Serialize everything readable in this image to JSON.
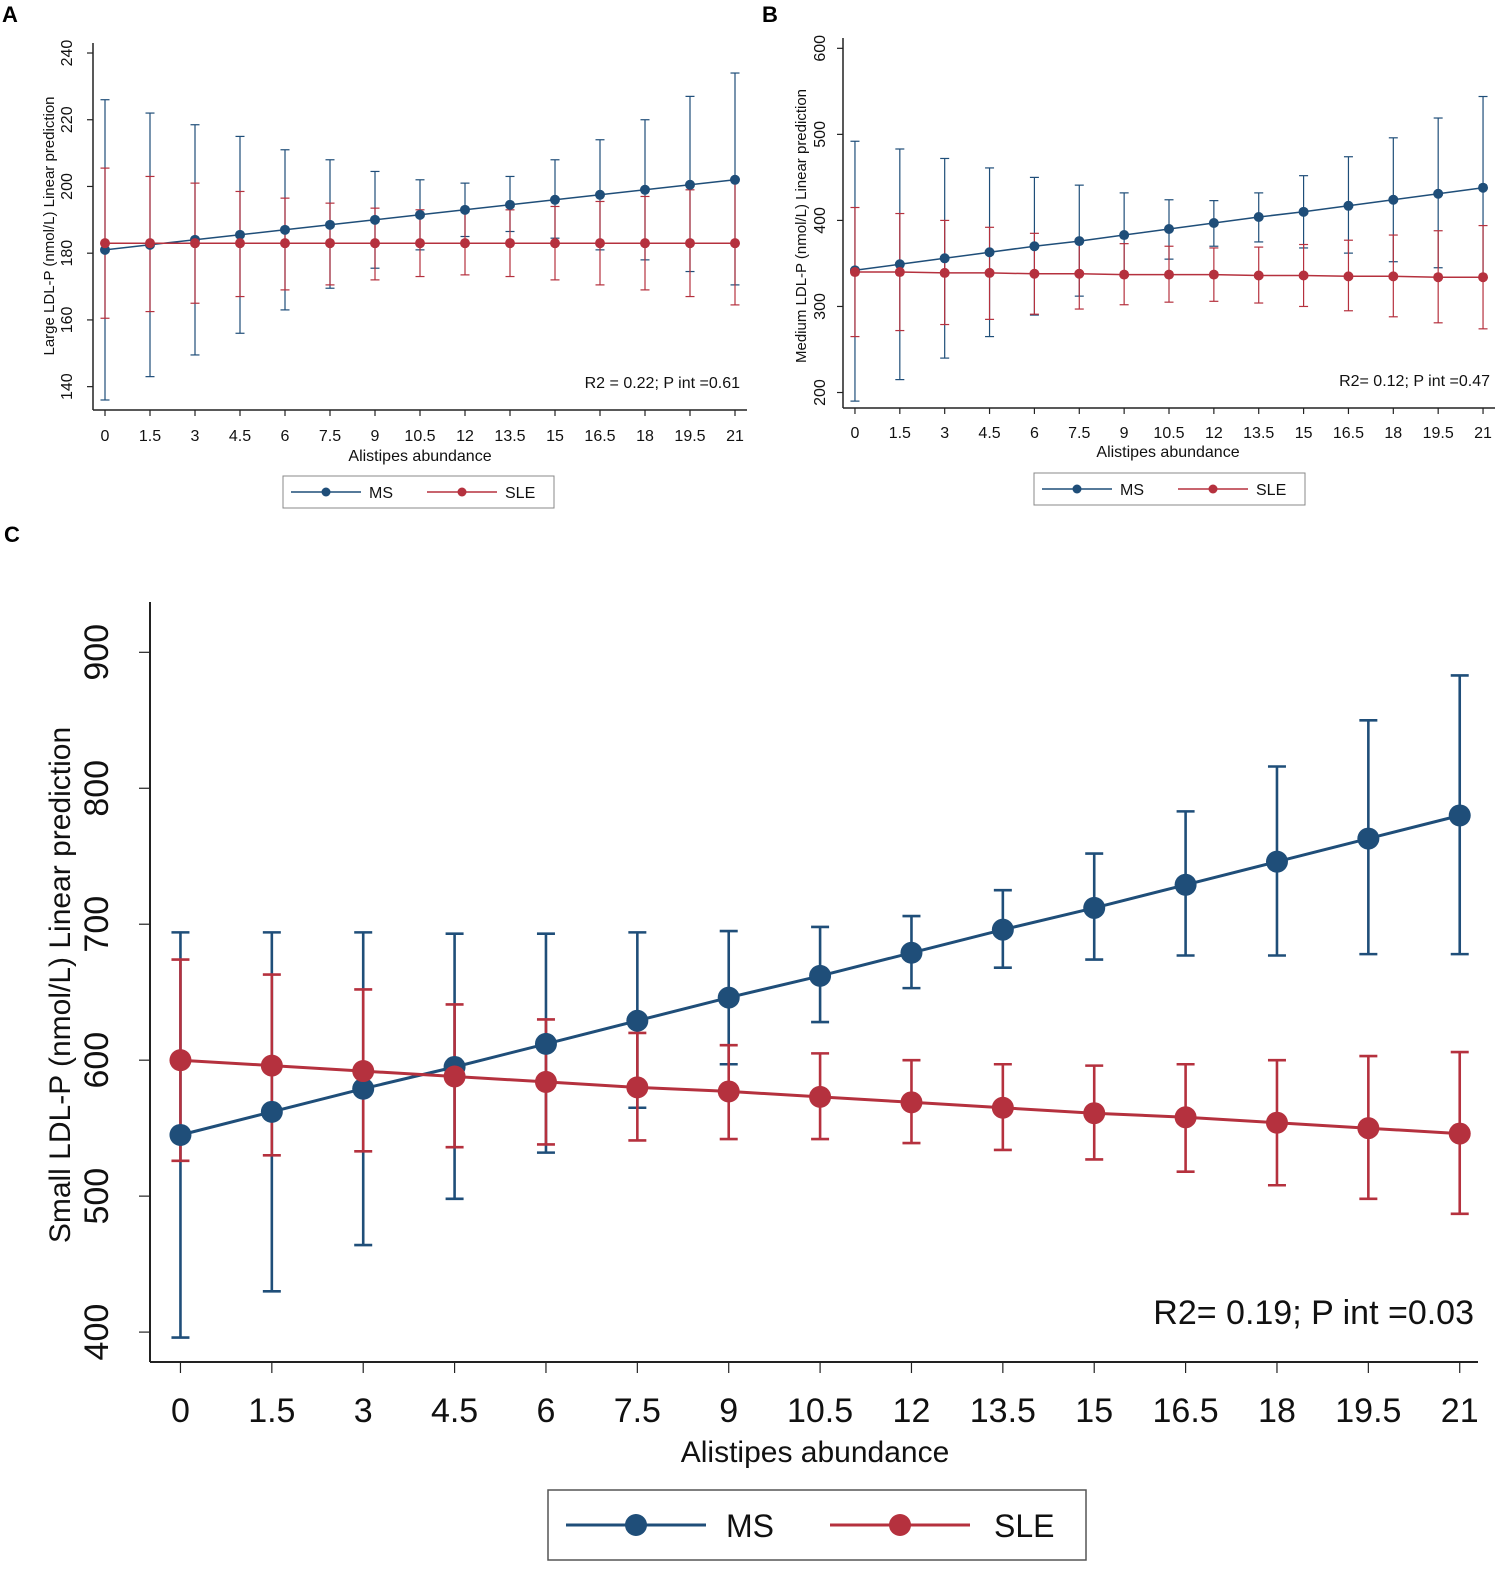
{
  "colors": {
    "ms": "#1f4e79",
    "sle": "#b5313e",
    "axis": "#222222",
    "text": "#111111"
  },
  "chart_data": [
    {
      "id": "A",
      "panel_label": "A",
      "type": "line",
      "errorbars": true,
      "title": "",
      "xlabel": "Alistipes abundance",
      "ylabel": "Large LDL-P (nmol/L) Linear prediction",
      "xlim": [
        -0.4,
        21.4
      ],
      "ylim": [
        133,
        243
      ],
      "x": [
        0,
        1.5,
        3,
        4.5,
        6,
        7.5,
        9,
        10.5,
        12,
        13.5,
        15,
        16.5,
        18,
        19.5,
        21
      ],
      "x_tick_labels": [
        "0",
        "1.5",
        "3",
        "4.5",
        "6",
        "7.5",
        "9",
        "10.5",
        "12",
        "13.5",
        "15",
        "16.5",
        "18",
        "19.5",
        "21"
      ],
      "y_ticks": [
        140,
        160,
        180,
        200,
        220,
        240
      ],
      "y_tick_labels": [
        "140",
        "160",
        "180",
        "200",
        "220",
        "240"
      ],
      "annotation": "R2 = 0.22; P int =0.61",
      "legend": {
        "position": "bottom-center",
        "entries": [
          "MS",
          "SLE"
        ]
      },
      "series": [
        {
          "name": "MS",
          "color_key": "ms",
          "values": [
            181,
            182.5,
            184,
            185.5,
            187,
            188.5,
            190,
            191.5,
            193,
            194.5,
            196,
            197.5,
            199,
            200.5,
            202
          ],
          "lower": [
            136,
            143,
            149.5,
            156,
            163,
            169.5,
            175.5,
            181,
            185,
            186.5,
            184.5,
            181,
            178,
            174.5,
            170.5
          ],
          "upper": [
            226,
            222,
            218.5,
            215,
            211,
            208,
            204.5,
            202,
            201,
            203,
            208,
            214,
            220,
            227,
            234
          ]
        },
        {
          "name": "SLE",
          "color_key": "sle",
          "values": [
            183,
            183,
            183,
            183,
            183,
            183,
            183,
            183,
            183,
            183,
            183,
            183,
            183,
            183,
            183
          ],
          "lower": [
            160.5,
            162.5,
            165,
            167,
            169,
            170.5,
            172,
            173,
            173.5,
            173,
            172,
            170.5,
            169,
            167,
            164.5
          ],
          "upper": [
            205.5,
            203,
            201,
            198.5,
            196.5,
            195,
            193.5,
            193,
            192.5,
            193,
            194,
            195.5,
            197,
            199,
            201.5
          ]
        }
      ]
    },
    {
      "id": "B",
      "panel_label": "B",
      "type": "line",
      "errorbars": true,
      "title": "",
      "xlabel": "Alistipes abundance",
      "ylabel": "Medium LDL-P (nmol/L) Linear prediction",
      "xlim": [
        -0.4,
        21.4
      ],
      "ylim": [
        182,
        612
      ],
      "x": [
        0,
        1.5,
        3,
        4.5,
        6,
        7.5,
        9,
        10.5,
        12,
        13.5,
        15,
        16.5,
        18,
        19.5,
        21
      ],
      "x_tick_labels": [
        "0",
        "1.5",
        "3",
        "4.5",
        "6",
        "7.5",
        "9",
        "10.5",
        "12",
        "13.5",
        "15",
        "16.5",
        "18",
        "19.5",
        "21"
      ],
      "y_ticks": [
        200,
        300,
        400,
        500,
        600
      ],
      "y_tick_labels": [
        "200",
        "300",
        "400",
        "500",
        "600"
      ],
      "annotation": "R2= 0.12; P int =0.47",
      "legend": {
        "position": "bottom-center",
        "entries": [
          "MS",
          "SLE"
        ]
      },
      "series": [
        {
          "name": "MS",
          "color_key": "ms",
          "values": [
            342,
            349,
            356,
            363,
            370,
            376,
            383,
            390,
            397,
            404,
            410,
            417,
            424,
            431,
            438
          ],
          "lower": [
            190,
            215,
            240,
            265,
            290,
            312,
            335,
            355,
            370,
            375,
            368,
            362,
            352,
            345,
            335
          ],
          "upper": [
            492,
            483,
            472,
            461,
            450,
            441,
            432,
            424,
            423,
            432,
            452,
            474,
            496,
            519,
            544
          ]
        },
        {
          "name": "SLE",
          "color_key": "sle",
          "values": [
            340,
            340,
            339,
            339,
            338,
            338,
            337,
            337,
            337,
            336,
            336,
            335,
            335,
            334,
            334
          ],
          "lower": [
            265,
            272,
            279,
            285,
            291,
            297,
            302,
            305,
            306,
            304,
            300,
            295,
            288,
            281,
            274
          ],
          "upper": [
            415,
            408,
            400,
            392,
            385,
            378,
            373,
            370,
            368,
            369,
            372,
            377,
            383,
            388,
            394
          ]
        }
      ]
    },
    {
      "id": "C",
      "panel_label": "C",
      "type": "line",
      "errorbars": true,
      "title": "",
      "xlabel": "Alistipes abundance",
      "ylabel": "Small LDL-P (nmol/L) Linear prediction",
      "xlim": [
        -0.5,
        21.3
      ],
      "ylim": [
        378,
        937
      ],
      "x": [
        0,
        1.5,
        3,
        4.5,
        6,
        7.5,
        9,
        10.5,
        12,
        13.5,
        15,
        16.5,
        18,
        19.5,
        21
      ],
      "x_tick_labels": [
        "0",
        "1.5",
        "3",
        "4.5",
        "6",
        "7.5",
        "9",
        "10.5",
        "12",
        "13.5",
        "15",
        "16.5",
        "18",
        "19.5",
        "21"
      ],
      "y_ticks": [
        400,
        500,
        600,
        700,
        800,
        900
      ],
      "y_tick_labels": [
        "400",
        "500",
        "600",
        "700",
        "800",
        "900"
      ],
      "annotation": "R2= 0.19; P int =0.03",
      "legend": {
        "position": "bottom-center",
        "entries": [
          "MS",
          "SLE"
        ]
      },
      "series": [
        {
          "name": "MS",
          "color_key": "ms",
          "values": [
            545,
            562,
            579,
            595,
            612,
            629,
            646,
            662,
            679,
            696,
            712,
            729,
            746,
            763,
            780
          ],
          "lower": [
            396,
            430,
            464,
            498,
            532,
            565,
            597,
            628,
            653,
            668,
            674,
            677,
            677,
            678,
            678
          ],
          "upper": [
            694,
            694,
            694,
            693,
            693,
            694,
            695,
            698,
            706,
            725,
            752,
            783,
            816,
            850,
            883
          ]
        },
        {
          "name": "SLE",
          "color_key": "sle",
          "values": [
            600,
            596,
            592,
            588,
            584,
            580,
            577,
            573,
            569,
            565,
            561,
            558,
            554,
            550,
            546
          ],
          "lower": [
            526,
            530,
            533,
            536,
            538,
            541,
            542,
            542,
            539,
            534,
            527,
            518,
            508,
            498,
            487
          ],
          "upper": [
            674,
            663,
            652,
            641,
            630,
            620,
            611,
            605,
            600,
            597,
            596,
            597,
            600,
            603,
            606
          ]
        }
      ]
    }
  ]
}
